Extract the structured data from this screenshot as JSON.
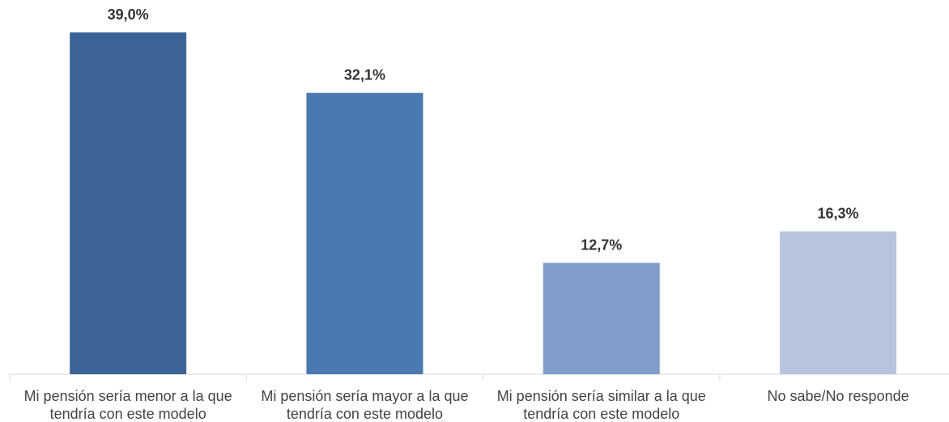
{
  "chart_data": {
    "type": "bar",
    "categories": [
      "Mi pensión sería menor a la que tendría con este modelo",
      "Mi pensión sería mayor a la que tendría con este modelo",
      "Mi pensión sería similar a la que tendría con este modelo",
      "No sabe/No responde"
    ],
    "values": [
      39.0,
      32.1,
      12.7,
      16.3
    ],
    "value_labels": [
      "39,0%",
      "32,1%",
      "12,7%",
      "16,3%"
    ],
    "colors": [
      "#3d6496",
      "#4a78b0",
      "#7f9dc8",
      "#b6c4de"
    ],
    "ylim": [
      0,
      42.7
    ]
  }
}
